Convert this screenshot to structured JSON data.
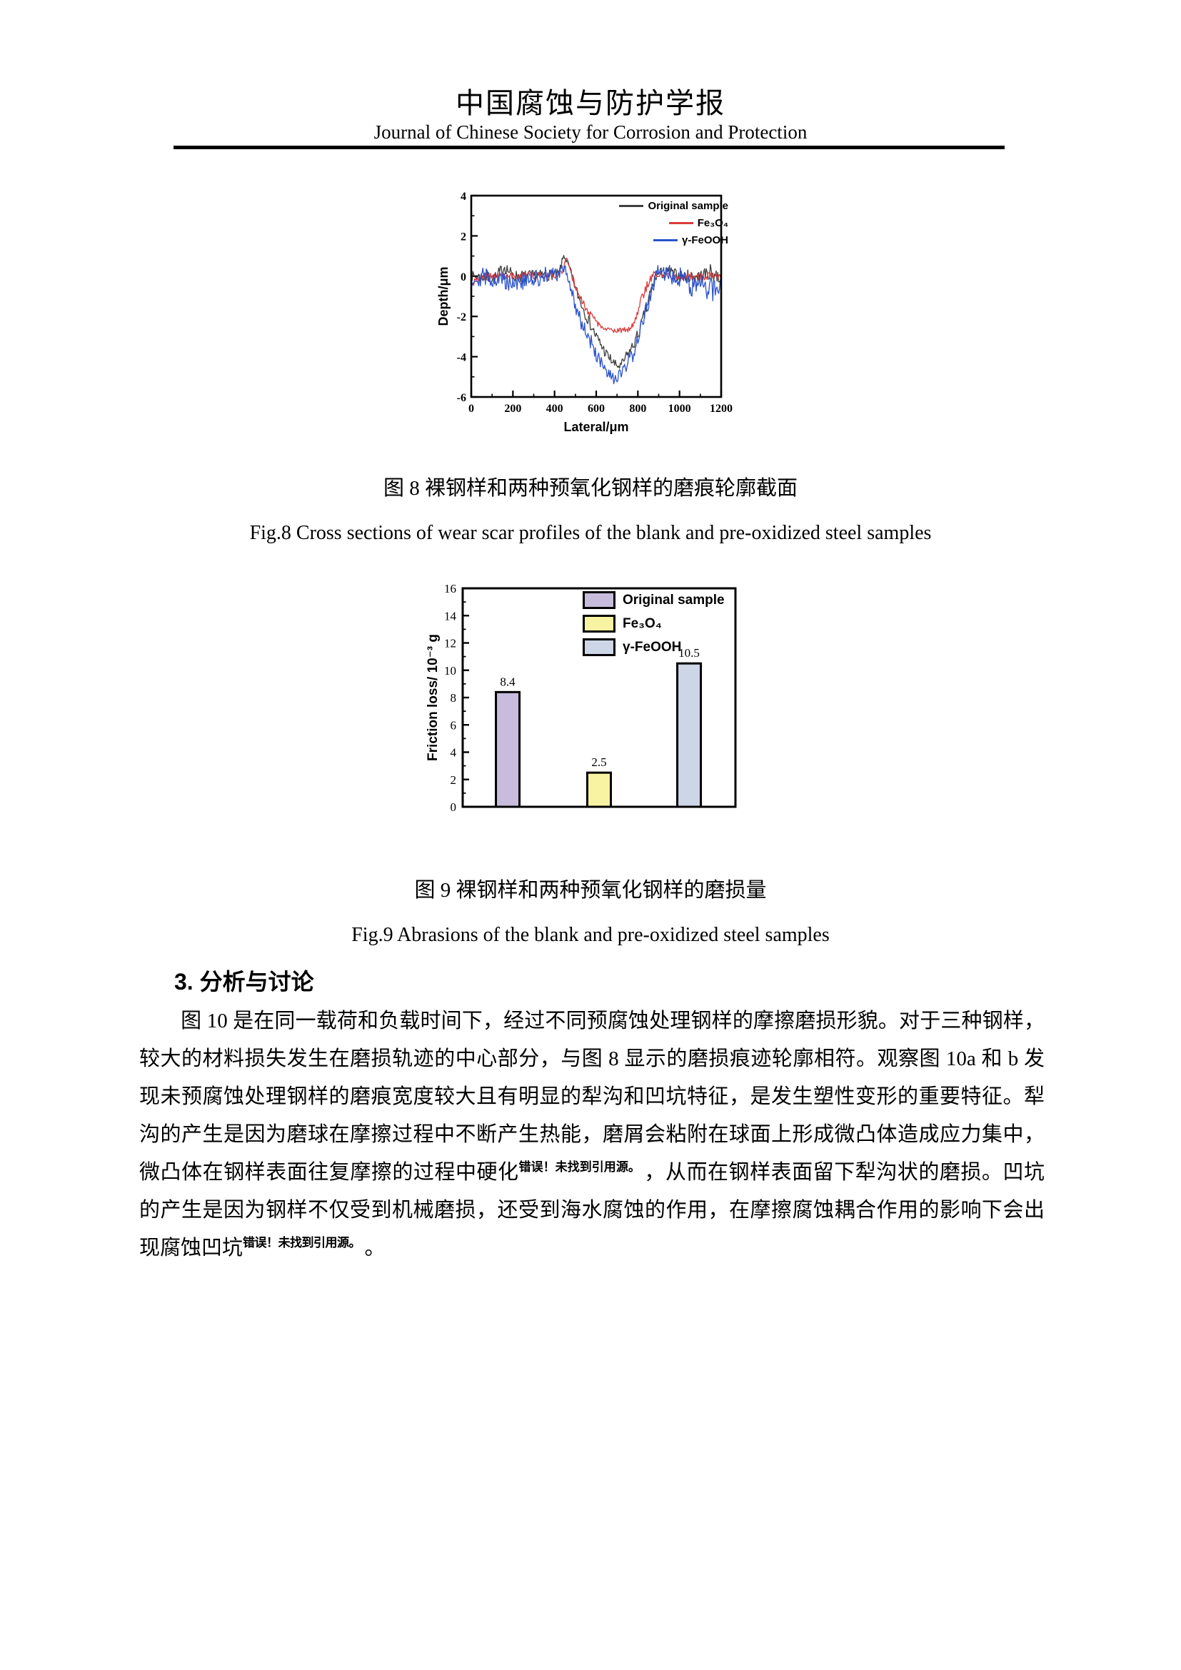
{
  "page": {
    "header": {
      "title_zh": "中国腐蚀与防护学报",
      "title_en": "Journal of Chinese Society for Corrosion and Protection"
    },
    "fig8": {
      "caption_zh": "图 8 裸钢样和两种预氧化钢样的磨痕轮廓截面",
      "caption_en": "Fig.8 Cross sections of wear scar profiles of the blank and pre-oxidized steel samples"
    },
    "fig9": {
      "caption_zh": "图 9 裸钢样和两种预氧化钢样的磨损量",
      "caption_en": "Fig.9 Abrasions of the blank and pre-oxidized steel samples"
    },
    "section": {
      "heading": "3. 分析与讨论"
    },
    "paragraph": {
      "seg1": "图 10 是在同一载荷和负载时间下，经过不同预腐蚀处理钢样的摩擦磨损形貌。对于三种钢样，较大的材料损失发生在磨损轨迹的中心部分，与图 8 显示的磨损痕迹轮廓相符。观察图 10a 和 b 发现未预腐蚀处理钢样的磨痕宽度较大且有明显的犁沟和凹坑特征，是发生塑性变形的重要特征。犁沟的产生是因为磨球在摩擦过程中不断产生热能，磨屑会粘附在球面上形成微凸体造成应力集中，微凸体在钢样表面往复摩擦的过程中硬化",
      "ref_error_1": "错误！未找到引用源。",
      "seg2": "，从而在钢样表面留下犁沟状的磨损。凹坑的产生是因为钢样不仅受到机械磨损，还受到海水腐蚀的作用，在摩擦腐蚀耦合作用的影响下会出现腐蚀凹坑",
      "ref_error_2": "错误！未找到引用源。",
      "seg3": "。"
    }
  },
  "chart_data": [
    {
      "type": "line",
      "title": "",
      "xlabel": "Lateral/μm",
      "ylabel": "Depth/μm",
      "xlim": [
        0,
        1200
      ],
      "ylim": [
        -6,
        4
      ],
      "xticks": [
        0,
        200,
        400,
        600,
        800,
        1000,
        1200
      ],
      "yticks": [
        -6,
        -4,
        -2,
        0,
        2,
        4
      ],
      "x_minor_step": 100,
      "y_minor_step": 1,
      "grid": false,
      "legend_position": "top-right",
      "anchor_format": "[lateral_um, mean_depth_um, noise_amplitude_um] — traces are noisy profilometer lines around these means",
      "series": [
        {
          "name": "Original sample",
          "color": "#3f3f3f",
          "trough_depth": -4.5,
          "anchors": [
            [
              0,
              0,
              0.25
            ],
            [
              120,
              -0.1,
              0.35
            ],
            [
              160,
              0.5,
              0.35
            ],
            [
              200,
              0,
              0.3
            ],
            [
              300,
              0,
              0.3
            ],
            [
              420,
              0.1,
              0.25
            ],
            [
              445,
              1.05,
              0.15
            ],
            [
              465,
              0.6,
              0.2
            ],
            [
              480,
              0.1,
              0.2
            ],
            [
              510,
              -0.9,
              0.25
            ],
            [
              550,
              -1.9,
              0.3
            ],
            [
              600,
              -3.0,
              0.3
            ],
            [
              650,
              -3.9,
              0.3
            ],
            [
              690,
              -4.4,
              0.25
            ],
            [
              715,
              -4.5,
              0.2
            ],
            [
              745,
              -4.0,
              0.3
            ],
            [
              775,
              -3.5,
              0.3
            ],
            [
              805,
              -2.8,
              0.3
            ],
            [
              835,
              -1.8,
              0.35
            ],
            [
              865,
              -0.7,
              0.35
            ],
            [
              890,
              0.1,
              0.3
            ],
            [
              950,
              0.2,
              0.3
            ],
            [
              1000,
              0,
              0.3
            ],
            [
              1100,
              0,
              0.35
            ],
            [
              1150,
              0.2,
              0.4
            ],
            [
              1200,
              -0.1,
              0.4
            ]
          ]
        },
        {
          "name": "Fe₃O₄",
          "color": "#dc3a3a",
          "trough_depth": -2.7,
          "anchors": [
            [
              0,
              -0.5,
              0.25
            ],
            [
              20,
              -0.2,
              0.2
            ],
            [
              60,
              0,
              0.18
            ],
            [
              200,
              0,
              0.18
            ],
            [
              400,
              0.05,
              0.18
            ],
            [
              440,
              0.3,
              0.2
            ],
            [
              455,
              0.85,
              0.15
            ],
            [
              475,
              0.3,
              0.2
            ],
            [
              500,
              -0.5,
              0.2
            ],
            [
              530,
              -1.2,
              0.2
            ],
            [
              570,
              -1.9,
              0.18
            ],
            [
              610,
              -2.4,
              0.15
            ],
            [
              640,
              -2.65,
              0.12
            ],
            [
              700,
              -2.7,
              0.12
            ],
            [
              755,
              -2.65,
              0.15
            ],
            [
              780,
              -2.3,
              0.2
            ],
            [
              805,
              -1.6,
              0.25
            ],
            [
              830,
              -0.8,
              0.25
            ],
            [
              855,
              -0.2,
              0.2
            ],
            [
              875,
              0.05,
              0.18
            ],
            [
              1000,
              0,
              0.18
            ],
            [
              1200,
              0,
              0.2
            ]
          ]
        },
        {
          "name": "γ-FeOOH",
          "color": "#2b52cc",
          "trough_depth": -5.4,
          "anchors": [
            [
              0,
              -0.2,
              0.4
            ],
            [
              60,
              0,
              0.45
            ],
            [
              150,
              -0.2,
              0.5
            ],
            [
              250,
              -0.3,
              0.5
            ],
            [
              350,
              0,
              0.45
            ],
            [
              430,
              0.1,
              0.4
            ],
            [
              450,
              0.5,
              0.3
            ],
            [
              468,
              -0.2,
              0.3
            ],
            [
              495,
              -1.3,
              0.35
            ],
            [
              530,
              -2.3,
              0.4
            ],
            [
              570,
              -3.2,
              0.4
            ],
            [
              610,
              -4.1,
              0.4
            ],
            [
              645,
              -4.8,
              0.35
            ],
            [
              680,
              -5.1,
              0.3
            ],
            [
              710,
              -5.0,
              0.35
            ],
            [
              740,
              -4.6,
              0.4
            ],
            [
              775,
              -3.9,
              0.4
            ],
            [
              810,
              -2.8,
              0.4
            ],
            [
              845,
              -1.5,
              0.4
            ],
            [
              875,
              -0.4,
              0.4
            ],
            [
              895,
              0.2,
              0.4
            ],
            [
              950,
              0.1,
              0.45
            ],
            [
              1020,
              -0.1,
              0.5
            ],
            [
              1080,
              -0.6,
              0.6
            ],
            [
              1120,
              -0.5,
              0.65
            ],
            [
              1160,
              -0.7,
              0.6
            ],
            [
              1200,
              -0.3,
              0.5
            ]
          ]
        }
      ]
    },
    {
      "type": "bar",
      "title": "",
      "categories": [
        "Original sample",
        "Fe₃O₄",
        "γ-FeOOH"
      ],
      "values": [
        8.4,
        2.5,
        10.5
      ],
      "value_labels": [
        "8.4",
        "2.5",
        "10.5"
      ],
      "bar_colors": [
        "#c7bcdc",
        "#f7f3a3",
        "#ccd6e7"
      ],
      "bar_edge_color": "#000000",
      "xlabel": "",
      "ylabel": "Friction loss/ 10⁻³ g",
      "ylim": [
        0,
        16
      ],
      "yticks": [
        0,
        2,
        4,
        6,
        8,
        10,
        12,
        14,
        16
      ],
      "y_minor_step": 1,
      "grid": false,
      "legend_position": "top-center"
    }
  ]
}
